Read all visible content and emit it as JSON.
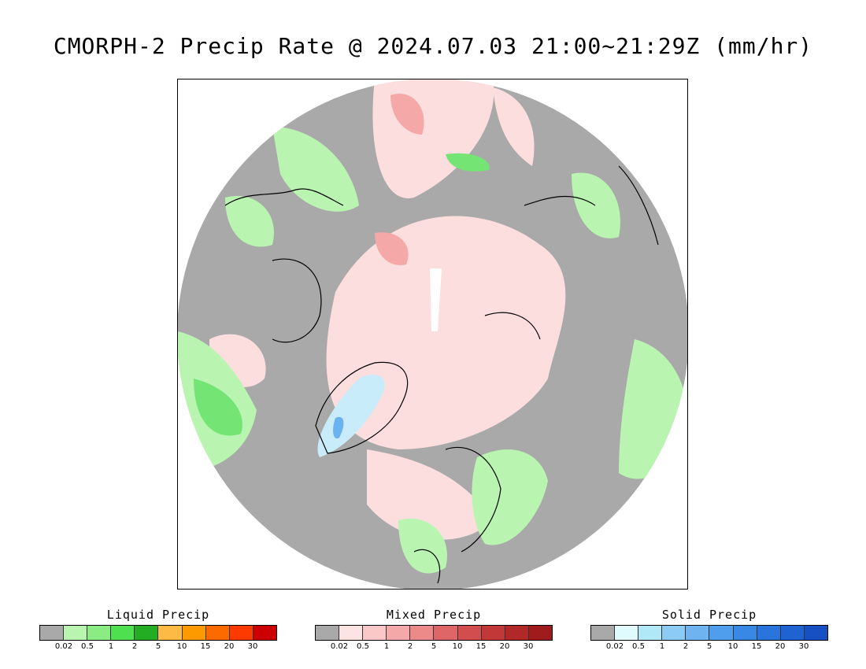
{
  "title": "CMORPH-2 Precip Rate @ 2024.07.03 21:00~21:29Z (mm/hr)",
  "map": {
    "projection": "north-polar-stereographic",
    "colors": {
      "no_precip": "#a9a9a9",
      "ocean_trace": "#a9a9a9",
      "liquid_light": "#b9f5b0",
      "liquid_mid": "#74e574",
      "liquid_heavy": "#22b022",
      "mixed_light": "#fddede",
      "mixed_mid": "#f4a8a8",
      "solid_light": "#c9ecfb",
      "solid_mid": "#6bb2f0",
      "coastline": "#000000"
    }
  },
  "legends": [
    {
      "name": "liquid",
      "title": "Liquid Precip",
      "colors": [
        "#a9a9a9",
        "#b9f5b0",
        "#8aec82",
        "#4fe04f",
        "#22ad22",
        "#fdbb45",
        "#fd9a00",
        "#fd6a00",
        "#fd3a00",
        "#cc0000"
      ],
      "ticks": [
        "0.02",
        "0.5",
        "1",
        "2",
        "5",
        "10",
        "15",
        "20",
        "30"
      ]
    },
    {
      "name": "mixed",
      "title": "Mixed Precip",
      "colors": [
        "#a9a9a9",
        "#fde4e4",
        "#fbc8c8",
        "#f4a8a8",
        "#ec8a8a",
        "#de6666",
        "#d24d4d",
        "#c23838",
        "#b02828",
        "#a01c1c"
      ],
      "ticks": [
        "0.02",
        "0.5",
        "1",
        "2",
        "5",
        "10",
        "15",
        "20",
        "30"
      ]
    },
    {
      "name": "solid",
      "title": "Solid Precip",
      "colors": [
        "#a9a9a9",
        "#dffbfd",
        "#b0e8f7",
        "#8ccbf5",
        "#6fb4f0",
        "#4f9ded",
        "#3a88e6",
        "#2a74de",
        "#1f62d2",
        "#1651c4"
      ],
      "ticks": [
        "0.02",
        "0.5",
        "1",
        "2",
        "5",
        "10",
        "15",
        "20",
        "30"
      ]
    }
  ]
}
